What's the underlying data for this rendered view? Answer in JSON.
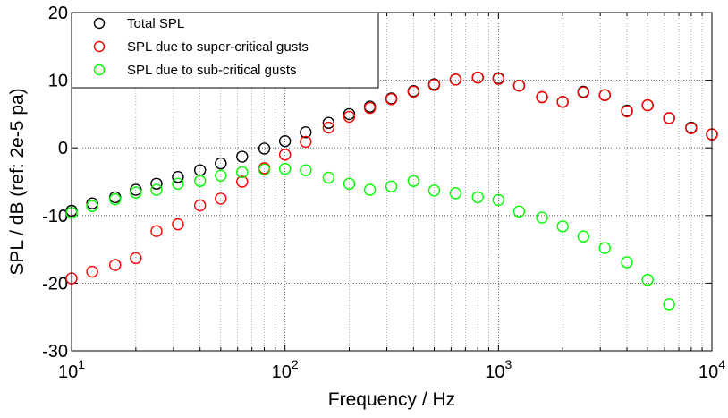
{
  "chart_data": {
    "type": "scatter",
    "xlabel": "Frequency / Hz",
    "ylabel": "SPL / dB (ref: 2e-5 pa)",
    "xscale": "log",
    "xlim": [
      10,
      10000
    ],
    "ylim": [
      -30,
      20
    ],
    "x_ticks": [
      {
        "base": "10",
        "exp": "1",
        "value": 10
      },
      {
        "base": "10",
        "exp": "2",
        "value": 100
      },
      {
        "base": "10",
        "exp": "3",
        "value": 1000
      },
      {
        "base": "10",
        "exp": "4",
        "value": 10000
      }
    ],
    "y_ticks": [
      -30,
      -20,
      -10,
      0,
      10,
      20
    ],
    "grid": true,
    "legend_position": "top-left",
    "marker": "circle-open",
    "series": [
      {
        "name": "Total SPL",
        "color": "#000000",
        "points": [
          [
            10,
            -9.3
          ],
          [
            12.5,
            -8.2
          ],
          [
            16,
            -7.3
          ],
          [
            20,
            -6.2
          ],
          [
            25,
            -5.3
          ],
          [
            31.5,
            -4.3
          ],
          [
            40,
            -3.3
          ],
          [
            50,
            -2.3
          ],
          [
            63,
            -1.3
          ],
          [
            80,
            -0.1
          ],
          [
            100,
            1.0
          ],
          [
            125,
            2.3
          ],
          [
            160,
            3.7
          ],
          [
            200,
            5.0
          ],
          [
            250,
            6.1
          ],
          [
            315,
            7.3
          ],
          [
            400,
            8.4
          ],
          [
            500,
            9.4
          ],
          [
            630,
            10.1
          ],
          [
            800,
            10.4
          ],
          [
            1000,
            10.3
          ],
          [
            1250,
            9.2
          ],
          [
            1600,
            7.5
          ],
          [
            2000,
            6.8
          ],
          [
            2500,
            8.3
          ],
          [
            3150,
            7.8
          ],
          [
            4000,
            5.5
          ],
          [
            5000,
            6.3
          ],
          [
            6300,
            4.4
          ],
          [
            8000,
            3.0
          ],
          [
            10000,
            2.0
          ]
        ]
      },
      {
        "name": "SPL due to super-critical gusts",
        "color": "#ff0000",
        "points": [
          [
            10,
            -19.3
          ],
          [
            12.5,
            -18.3
          ],
          [
            16,
            -17.3
          ],
          [
            20,
            -16.3
          ],
          [
            25,
            -12.3
          ],
          [
            31.5,
            -11.3
          ],
          [
            40,
            -8.5
          ],
          [
            50,
            -7.5
          ],
          [
            63,
            -5.0
          ],
          [
            80,
            -3.0
          ],
          [
            100,
            -1.0
          ],
          [
            125,
            0.9
          ],
          [
            160,
            3.0
          ],
          [
            200,
            4.6
          ],
          [
            250,
            5.9
          ],
          [
            315,
            7.2
          ],
          [
            400,
            8.3
          ],
          [
            500,
            9.3
          ],
          [
            630,
            10.1
          ],
          [
            800,
            10.4
          ],
          [
            1000,
            10.2
          ],
          [
            1250,
            9.2
          ],
          [
            1600,
            7.5
          ],
          [
            2000,
            6.8
          ],
          [
            2500,
            8.2
          ],
          [
            3150,
            7.8
          ],
          [
            4000,
            5.4
          ],
          [
            5000,
            6.3
          ],
          [
            6300,
            4.4
          ],
          [
            8000,
            2.9
          ],
          [
            10000,
            2.0
          ]
        ]
      },
      {
        "name": "SPL due to sub-critical gusts",
        "color": "#00ff00",
        "points": [
          [
            10,
            -9.6
          ],
          [
            12.5,
            -8.6
          ],
          [
            16,
            -7.6
          ],
          [
            20,
            -6.6
          ],
          [
            25,
            -6.2
          ],
          [
            31.5,
            -5.3
          ],
          [
            40,
            -4.9
          ],
          [
            50,
            -4.1
          ],
          [
            63,
            -3.6
          ],
          [
            80,
            -3.2
          ],
          [
            100,
            -3.1
          ],
          [
            125,
            -3.3
          ],
          [
            160,
            -4.4
          ],
          [
            200,
            -5.3
          ],
          [
            250,
            -6.2
          ],
          [
            315,
            -5.7
          ],
          [
            400,
            -4.9
          ],
          [
            500,
            -6.3
          ],
          [
            630,
            -6.7
          ],
          [
            800,
            -7.3
          ],
          [
            1000,
            -7.7
          ],
          [
            1250,
            -9.4
          ],
          [
            1600,
            -10.3
          ],
          [
            2000,
            -11.6
          ],
          [
            2500,
            -13.1
          ],
          [
            3150,
            -14.8
          ],
          [
            4000,
            -16.9
          ],
          [
            5000,
            -19.5
          ],
          [
            6300,
            -23.1
          ]
        ]
      }
    ]
  }
}
